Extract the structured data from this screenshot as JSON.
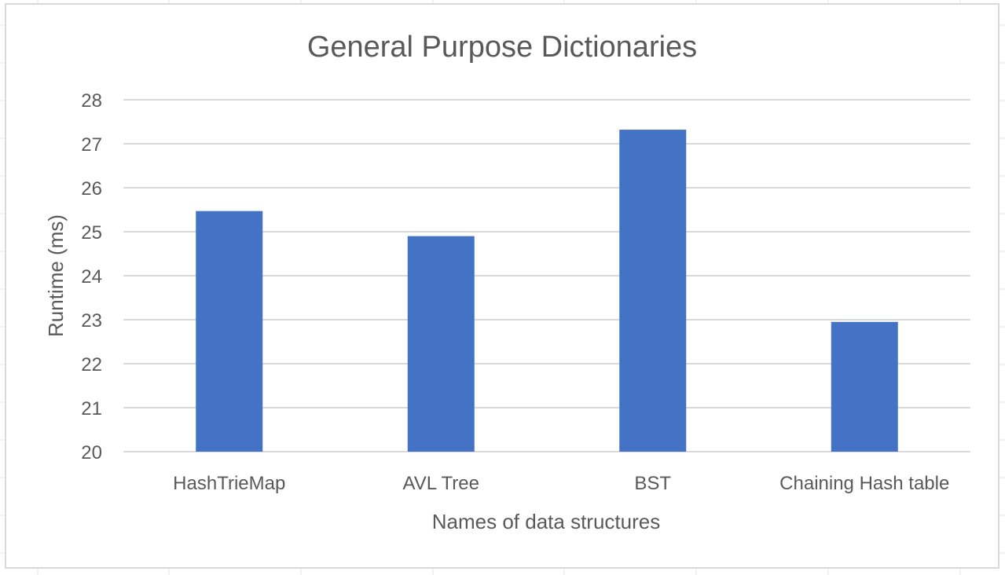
{
  "chart_data": {
    "type": "bar",
    "title": "General Purpose Dictionaries",
    "xlabel": "Names of data structures",
    "ylabel": "Runtime (ms)",
    "categories": [
      "HashTrieMap",
      "AVL Tree",
      "BST",
      "Chaining Hash table"
    ],
    "values": [
      25.47,
      24.9,
      27.32,
      22.95
    ],
    "ylim": [
      20,
      28
    ],
    "yticks": [
      "20",
      "21",
      "22",
      "23",
      "24",
      "25",
      "26",
      "27",
      "28"
    ],
    "grid": true,
    "legend": "none",
    "bar_color": "#4472c4"
  },
  "colors": {
    "gridline": "#d9d9d9",
    "text": "#595959",
    "sheet_grid": "#e6e6e6"
  }
}
